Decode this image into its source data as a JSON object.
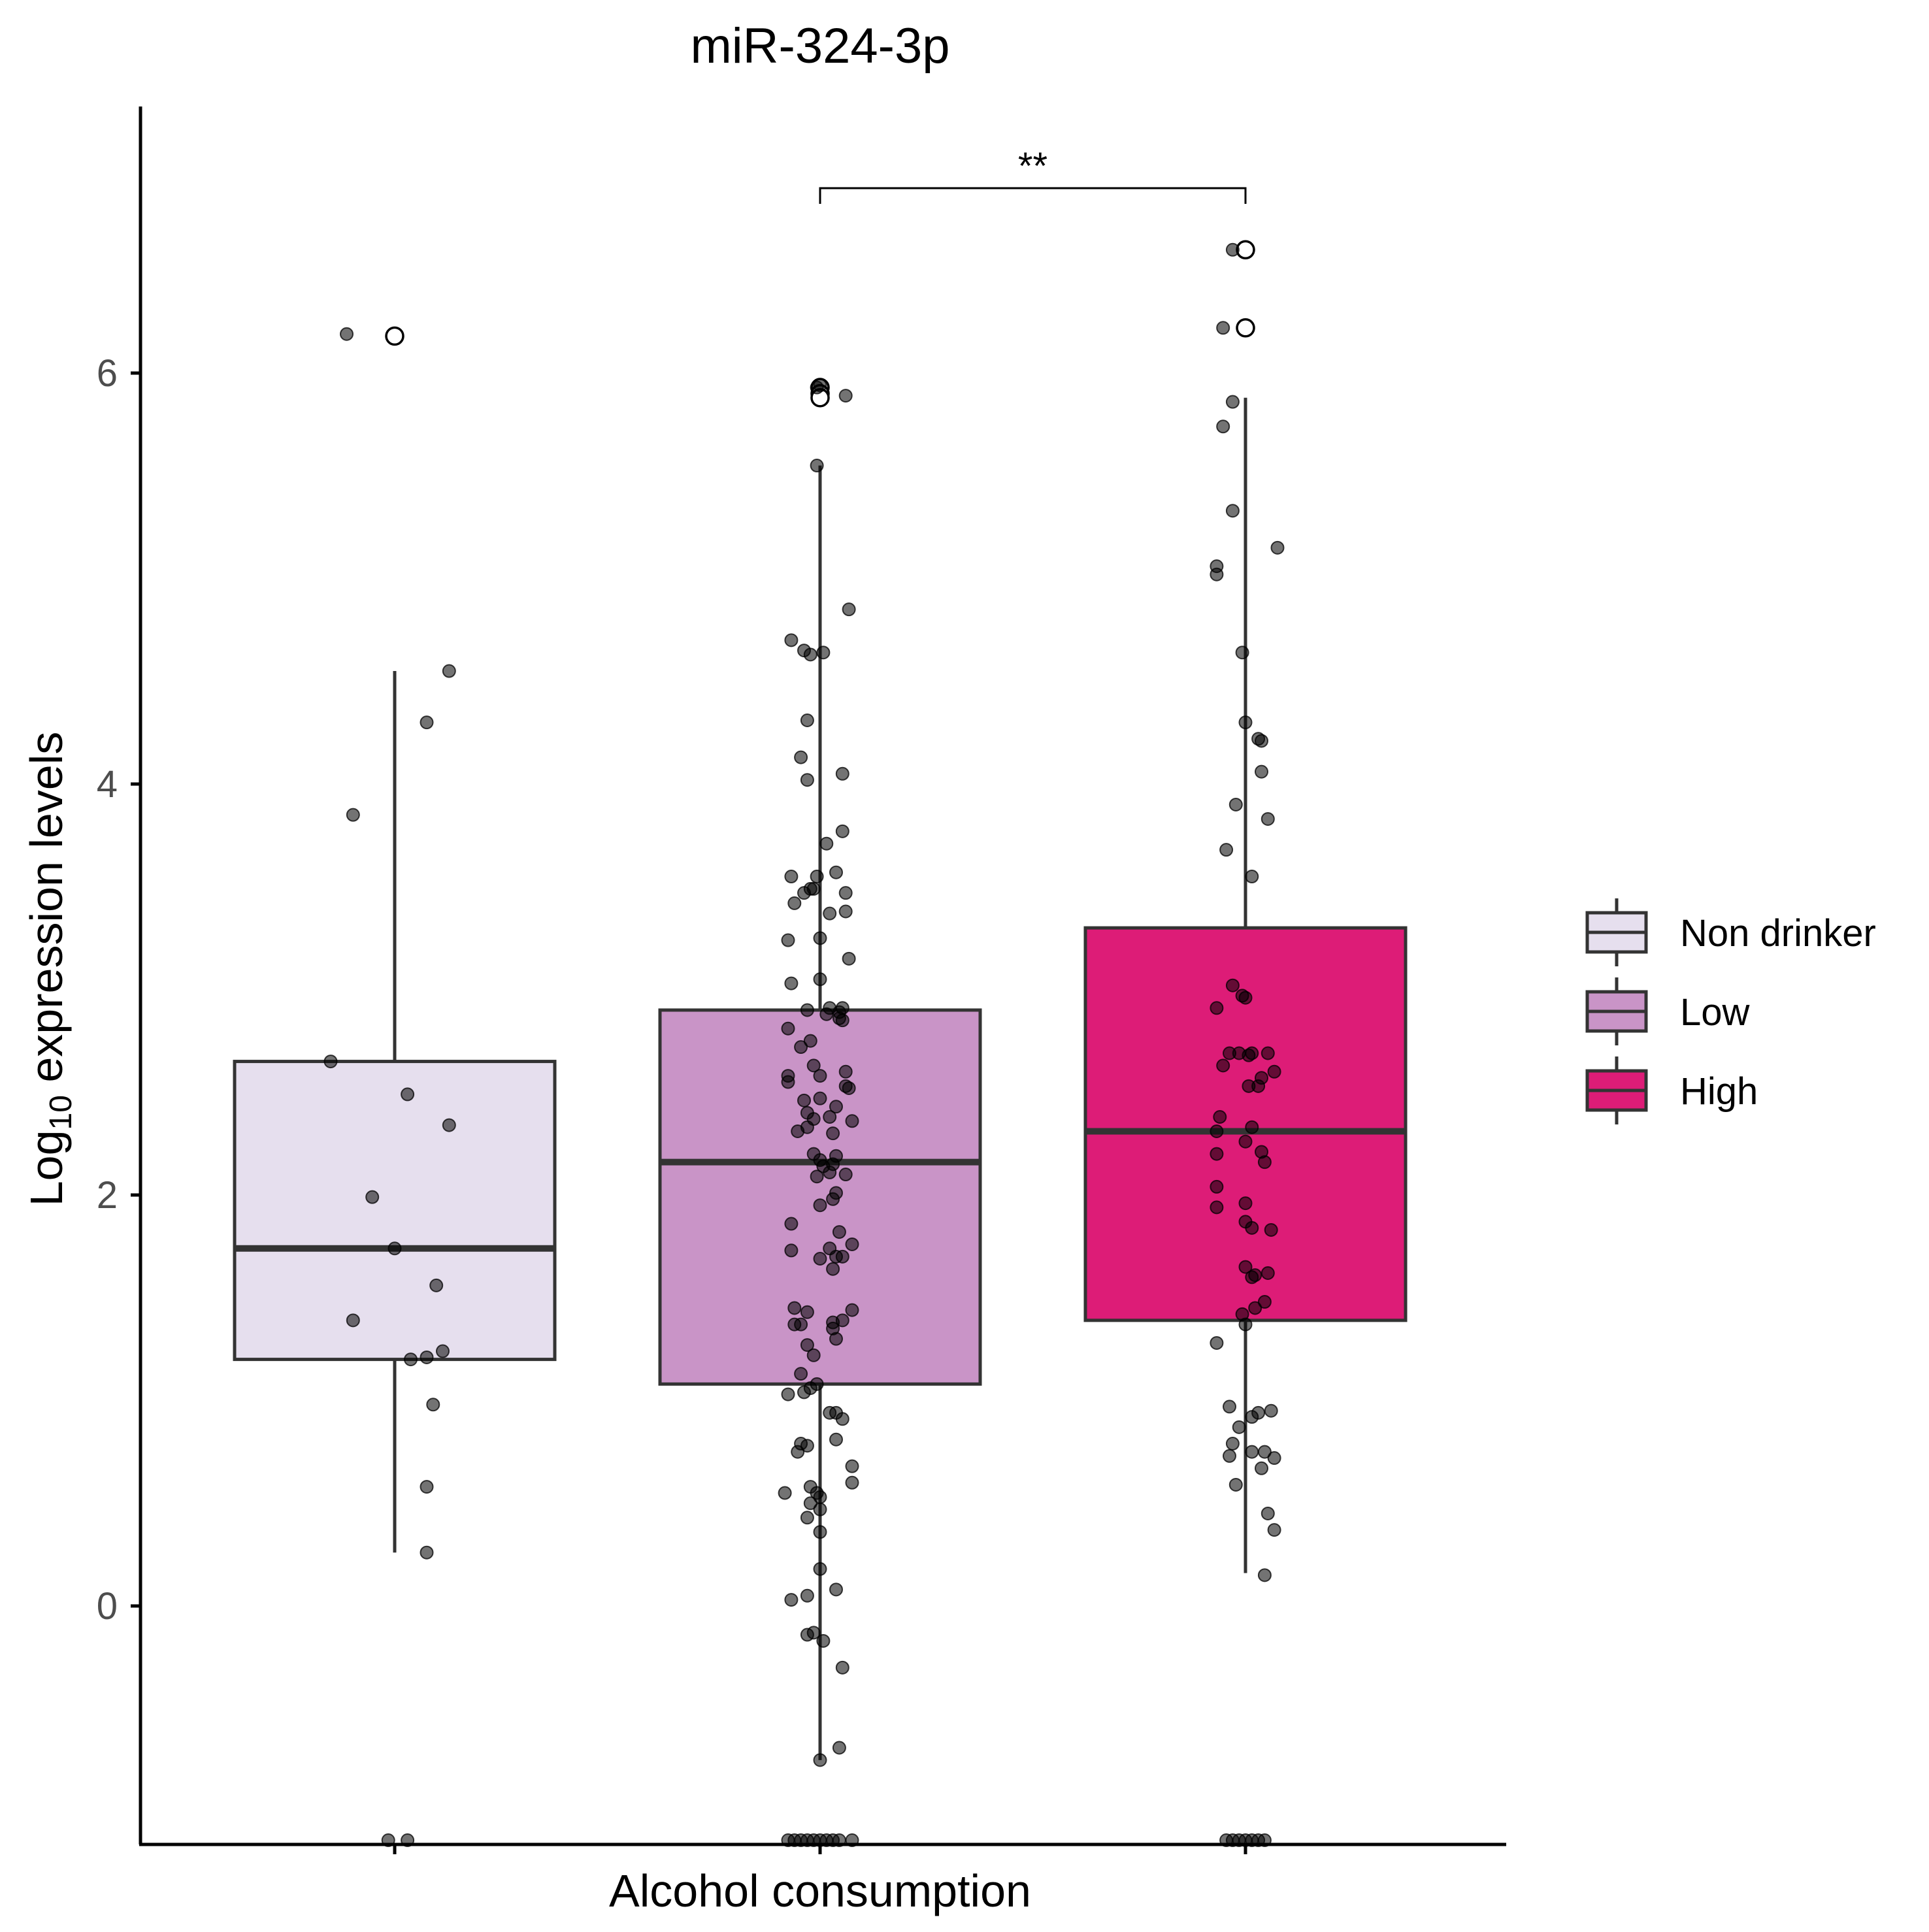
{
  "chart_data": {
    "type": "box",
    "title": "miR-324-3p",
    "xlabel": "Alcohol consumption",
    "ylabel": {
      "base": "Log",
      "sub": "10",
      "rest": " expression levels"
    },
    "ylim": [
      -1.14,
      7.28
    ],
    "yticks": [
      0,
      2,
      4,
      6
    ],
    "x_ticks_labels": [
      "",
      "",
      ""
    ],
    "grid": false,
    "legend": {
      "position": "right",
      "title": ""
    },
    "groups": [
      {
        "name": "Non drinker",
        "color": "#E6DFEE",
        "box": {
          "q1": 1.2,
          "median": 1.74,
          "q3": 2.65,
          "whisker_low": 0.26,
          "whisker_high": 4.55
        },
        "outliers": [
          6.18
        ],
        "points": [
          [
            -0.15,
            6.19
          ],
          [
            0.17,
            4.55
          ],
          [
            0.1,
            4.3
          ],
          [
            -0.13,
            3.85
          ],
          [
            -0.2,
            2.65
          ],
          [
            0.04,
            2.49
          ],
          [
            0.17,
            2.34
          ],
          [
            -0.07,
            1.99
          ],
          [
            0.0,
            1.74
          ],
          [
            0.13,
            1.56
          ],
          [
            -0.13,
            1.39
          ],
          [
            0.15,
            1.24
          ],
          [
            0.05,
            1.2
          ],
          [
            0.1,
            1.21
          ],
          [
            0.12,
            0.98
          ],
          [
            0.1,
            0.58
          ],
          [
            0.1,
            0.26
          ],
          [
            -0.02,
            -1.14
          ],
          [
            0.04,
            -1.14
          ]
        ]
      },
      {
        "name": "Low",
        "color": "#C994C7",
        "box": {
          "q1": 1.08,
          "median": 2.16,
          "q3": 2.9,
          "whisker_low": -0.75,
          "whisker_high": 5.55
        },
        "outliers": [
          5.93,
          5.9,
          5.88
        ],
        "points": [
          [
            0.0,
            5.94
          ],
          [
            -0.01,
            5.93
          ],
          [
            0.08,
            5.89
          ],
          [
            -0.01,
            5.55
          ],
          [
            0.09,
            4.85
          ],
          [
            -0.09,
            4.7
          ],
          [
            -0.05,
            4.65
          ],
          [
            -0.03,
            4.63
          ],
          [
            0.01,
            4.64
          ],
          [
            -0.04,
            4.31
          ],
          [
            -0.06,
            4.13
          ],
          [
            -0.04,
            4.02
          ],
          [
            0.07,
            4.05
          ],
          [
            0.07,
            3.77
          ],
          [
            0.02,
            3.71
          ],
          [
            0.05,
            3.57
          ],
          [
            -0.09,
            3.55
          ],
          [
            -0.01,
            3.55
          ],
          [
            -0.05,
            3.47
          ],
          [
            -0.03,
            3.49
          ],
          [
            -0.02,
            3.49
          ],
          [
            0.08,
            3.47
          ],
          [
            -0.08,
            3.42
          ],
          [
            0.03,
            3.37
          ],
          [
            0.08,
            3.38
          ],
          [
            -0.1,
            3.24
          ],
          [
            0.0,
            3.25
          ],
          [
            0.09,
            3.15
          ],
          [
            -0.09,
            3.03
          ],
          [
            0.0,
            3.05
          ],
          [
            -0.04,
            2.9
          ],
          [
            0.03,
            2.91
          ],
          [
            0.06,
            2.86
          ],
          [
            0.07,
            2.91
          ],
          [
            0.07,
            2.85
          ],
          [
            -0.1,
            2.81
          ],
          [
            -0.06,
            2.72
          ],
          [
            -0.03,
            2.75
          ],
          [
            0.02,
            2.88
          ],
          [
            0.06,
            2.89
          ],
          [
            -0.02,
            2.63
          ],
          [
            0.08,
            2.6
          ],
          [
            -0.1,
            2.58
          ],
          [
            0.0,
            2.58
          ],
          [
            0.08,
            2.53
          ],
          [
            -0.1,
            2.55
          ],
          [
            -0.05,
            2.46
          ],
          [
            0.0,
            2.47
          ],
          [
            0.05,
            2.43
          ],
          [
            0.09,
            2.52
          ],
          [
            -0.04,
            2.4
          ],
          [
            -0.02,
            2.37
          ],
          [
            0.03,
            2.38
          ],
          [
            0.1,
            2.36
          ],
          [
            -0.07,
            2.31
          ],
          [
            -0.04,
            2.33
          ],
          [
            0.04,
            2.3
          ],
          [
            -0.02,
            2.2
          ],
          [
            0.0,
            2.17
          ],
          [
            0.05,
            2.19
          ],
          [
            0.01,
            2.14
          ],
          [
            0.04,
            2.15
          ],
          [
            0.08,
            2.1
          ],
          [
            0.03,
            2.11
          ],
          [
            -0.01,
            2.09
          ],
          [
            0.04,
            1.98
          ],
          [
            0.05,
            2.01
          ],
          [
            0.0,
            1.95
          ],
          [
            -0.09,
            1.86
          ],
          [
            0.06,
            1.82
          ],
          [
            0.1,
            1.76
          ],
          [
            0.03,
            1.74
          ],
          [
            0.05,
            1.7
          ],
          [
            0.07,
            1.7
          ],
          [
            0.0,
            1.69
          ],
          [
            -0.09,
            1.73
          ],
          [
            0.04,
            1.64
          ],
          [
            -0.08,
            1.45
          ],
          [
            -0.04,
            1.43
          ],
          [
            0.04,
            1.38
          ],
          [
            0.07,
            1.39
          ],
          [
            0.1,
            1.44
          ],
          [
            -0.08,
            1.37
          ],
          [
            -0.06,
            1.37
          ],
          [
            0.04,
            1.35
          ],
          [
            0.05,
            1.3
          ],
          [
            -0.04,
            1.27
          ],
          [
            -0.02,
            1.22
          ],
          [
            -0.06,
            1.13
          ],
          [
            -0.01,
            1.08
          ],
          [
            -0.05,
            1.04
          ],
          [
            -0.03,
            1.06
          ],
          [
            -0.1,
            1.03
          ],
          [
            0.03,
            0.94
          ],
          [
            0.05,
            0.94
          ],
          [
            0.07,
            0.91
          ],
          [
            0.05,
            0.81
          ],
          [
            -0.06,
            0.79
          ],
          [
            -0.04,
            0.78
          ],
          [
            -0.07,
            0.75
          ],
          [
            0.1,
            0.68
          ],
          [
            0.1,
            0.6
          ],
          [
            -0.11,
            0.55
          ],
          [
            -0.03,
            0.58
          ],
          [
            -0.01,
            0.55
          ],
          [
            0.0,
            0.53
          ],
          [
            -0.03,
            0.5
          ],
          [
            0.0,
            0.47
          ],
          [
            -0.04,
            0.43
          ],
          [
            0.0,
            0.36
          ],
          [
            0.0,
            0.18
          ],
          [
            0.05,
            0.08
          ],
          [
            -0.04,
            0.05
          ],
          [
            -0.09,
            0.03
          ],
          [
            -0.04,
            -0.14
          ],
          [
            -0.02,
            -0.13
          ],
          [
            0.01,
            -0.17
          ],
          [
            0.07,
            -0.3
          ],
          [
            0.06,
            -0.69
          ],
          [
            0.0,
            -0.75
          ],
          [
            -0.1,
            -1.14
          ],
          [
            -0.08,
            -1.14
          ],
          [
            -0.06,
            -1.14
          ],
          [
            -0.04,
            -1.14
          ],
          [
            -0.02,
            -1.14
          ],
          [
            0.0,
            -1.14
          ],
          [
            0.02,
            -1.14
          ],
          [
            0.04,
            -1.14
          ],
          [
            0.06,
            -1.14
          ],
          [
            0.1,
            -1.14
          ]
        ]
      },
      {
        "name": "High",
        "color": "#DD1C77",
        "box": {
          "q1": 1.39,
          "median": 2.31,
          "q3": 3.3,
          "whisker_low": 0.16,
          "whisker_high": 5.88
        },
        "outliers": [
          6.6,
          6.22
        ],
        "points": [
          [
            -0.04,
            6.6
          ],
          [
            -0.07,
            6.22
          ],
          [
            -0.04,
            5.86
          ],
          [
            -0.07,
            5.74
          ],
          [
            -0.04,
            5.33
          ],
          [
            0.1,
            5.15
          ],
          [
            -0.09,
            5.06
          ],
          [
            -0.09,
            5.02
          ],
          [
            -0.01,
            4.64
          ],
          [
            0.0,
            4.3
          ],
          [
            0.04,
            4.22
          ],
          [
            0.05,
            4.21
          ],
          [
            0.05,
            4.06
          ],
          [
            -0.03,
            3.9
          ],
          [
            0.07,
            3.83
          ],
          [
            -0.06,
            3.68
          ],
          [
            0.02,
            3.55
          ],
          [
            -0.04,
            3.02
          ],
          [
            -0.01,
            2.97
          ],
          [
            0.0,
            2.96
          ],
          [
            -0.09,
            2.91
          ],
          [
            -0.05,
            2.69
          ],
          [
            -0.02,
            2.69
          ],
          [
            0.02,
            2.69
          ],
          [
            0.07,
            2.69
          ],
          [
            0.01,
            2.68
          ],
          [
            -0.07,
            2.63
          ],
          [
            0.09,
            2.6
          ],
          [
            0.05,
            2.57
          ],
          [
            0.04,
            2.53
          ],
          [
            0.01,
            2.53
          ],
          [
            -0.08,
            2.38
          ],
          [
            -0.09,
            2.31
          ],
          [
            0.02,
            2.33
          ],
          [
            0.0,
            2.26
          ],
          [
            -0.09,
            2.2
          ],
          [
            0.05,
            2.21
          ],
          [
            0.06,
            2.16
          ],
          [
            -0.09,
            2.04
          ],
          [
            0.0,
            1.96
          ],
          [
            -0.09,
            1.94
          ],
          [
            0.0,
            1.87
          ],
          [
            0.02,
            1.84
          ],
          [
            0.08,
            1.83
          ],
          [
            0.0,
            1.65
          ],
          [
            0.02,
            1.6
          ],
          [
            0.03,
            1.61
          ],
          [
            0.07,
            1.62
          ],
          [
            0.06,
            1.48
          ],
          [
            0.03,
            1.45
          ],
          [
            -0.01,
            1.42
          ],
          [
            0.0,
            1.37
          ],
          [
            -0.09,
            1.28
          ],
          [
            -0.05,
            0.97
          ],
          [
            0.04,
            0.94
          ],
          [
            0.08,
            0.95
          ],
          [
            0.02,
            0.92
          ],
          [
            -0.02,
            0.87
          ],
          [
            -0.04,
            0.79
          ],
          [
            -0.05,
            0.73
          ],
          [
            0.02,
            0.75
          ],
          [
            0.06,
            0.75
          ],
          [
            0.09,
            0.72
          ],
          [
            0.05,
            0.67
          ],
          [
            -0.03,
            0.59
          ],
          [
            0.07,
            0.45
          ],
          [
            0.09,
            0.37
          ],
          [
            0.06,
            0.15
          ],
          [
            -0.06,
            -1.14
          ],
          [
            -0.04,
            -1.14
          ],
          [
            -0.02,
            -1.14
          ],
          [
            0.0,
            -1.14
          ],
          [
            0.02,
            -1.14
          ],
          [
            0.04,
            -1.14
          ],
          [
            0.06,
            -1.14
          ]
        ]
      }
    ],
    "annotations": [
      {
        "text": "**",
        "from_group": 1,
        "to_group": 2,
        "y": 6.9
      }
    ]
  }
}
